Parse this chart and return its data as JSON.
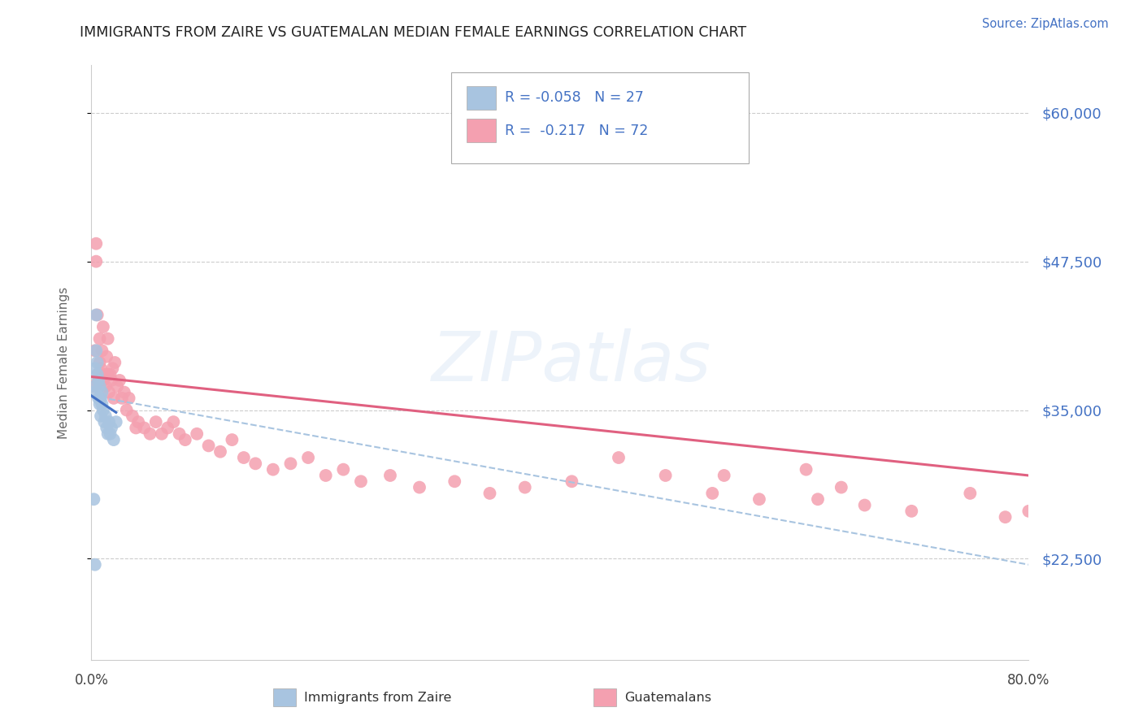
{
  "title": "IMMIGRANTS FROM ZAIRE VS GUATEMALAN MEDIAN FEMALE EARNINGS CORRELATION CHART",
  "source": "Source: ZipAtlas.com",
  "ylabel": "Median Female Earnings",
  "ytick_labels": [
    "$60,000",
    "$47,500",
    "$35,000",
    "$22,500"
  ],
  "ytick_values": [
    60000,
    47500,
    35000,
    22500
  ],
  "ymin": 14000,
  "ymax": 64000,
  "xmin": 0.0,
  "xmax": 0.8,
  "title_color": "#222222",
  "source_color": "#4472c4",
  "ylabel_color": "#666666",
  "ytick_color": "#4472c4",
  "blue_scatter_color": "#a8c4e0",
  "pink_scatter_color": "#f4a0b0",
  "blue_line_color": "#4472c4",
  "pink_line_color": "#e06080",
  "dashed_line_color": "#a8c4e0",
  "grid_color": "#cccccc",
  "legend_text_color": "#4472c4",
  "legend_label1": "Immigrants from Zaire",
  "legend_label2": "Guatemalans",
  "zaire_x": [
    0.002,
    0.003,
    0.003,
    0.004,
    0.004,
    0.005,
    0.005,
    0.006,
    0.006,
    0.007,
    0.007,
    0.008,
    0.008,
    0.009,
    0.009,
    0.01,
    0.011,
    0.012,
    0.013,
    0.014,
    0.015,
    0.016,
    0.017,
    0.019,
    0.021,
    0.002,
    0.003
  ],
  "zaire_y": [
    36500,
    38500,
    37000,
    43000,
    40000,
    39000,
    38000,
    37500,
    36000,
    37000,
    35500,
    36000,
    34500,
    36500,
    35500,
    35000,
    34000,
    34500,
    33500,
    33000,
    34000,
    33000,
    33500,
    32500,
    34000,
    27500,
    22000
  ],
  "guatemalan_x": [
    0.002,
    0.003,
    0.004,
    0.004,
    0.005,
    0.006,
    0.006,
    0.007,
    0.007,
    0.008,
    0.009,
    0.01,
    0.01,
    0.011,
    0.012,
    0.013,
    0.014,
    0.014,
    0.015,
    0.016,
    0.017,
    0.018,
    0.019,
    0.02,
    0.022,
    0.024,
    0.026,
    0.028,
    0.03,
    0.032,
    0.035,
    0.038,
    0.04,
    0.045,
    0.05,
    0.055,
    0.06,
    0.065,
    0.07,
    0.075,
    0.08,
    0.09,
    0.1,
    0.11,
    0.12,
    0.13,
    0.14,
    0.155,
    0.17,
    0.185,
    0.2,
    0.215,
    0.23,
    0.255,
    0.28,
    0.31,
    0.34,
    0.37,
    0.41,
    0.45,
    0.49,
    0.53,
    0.57,
    0.61,
    0.64,
    0.54,
    0.62,
    0.66,
    0.7,
    0.75,
    0.78,
    0.8
  ],
  "guatemalan_y": [
    37000,
    40000,
    49000,
    47500,
    43000,
    38000,
    37500,
    41000,
    39000,
    38500,
    40000,
    37500,
    42000,
    38000,
    37000,
    39500,
    41000,
    38000,
    36500,
    38000,
    37500,
    38500,
    36000,
    39000,
    37000,
    37500,
    36000,
    36500,
    35000,
    36000,
    34500,
    33500,
    34000,
    33500,
    33000,
    34000,
    33000,
    33500,
    34000,
    33000,
    32500,
    33000,
    32000,
    31500,
    32500,
    31000,
    30500,
    30000,
    30500,
    31000,
    29500,
    30000,
    29000,
    29500,
    28500,
    29000,
    28000,
    28500,
    29000,
    31000,
    29500,
    28000,
    27500,
    30000,
    28500,
    29500,
    27500,
    27000,
    26500,
    28000,
    26000,
    26500
  ],
  "blue_line_x": [
    0.0,
    0.021
  ],
  "blue_line_y": [
    36200,
    34800
  ],
  "pink_line_x": [
    0.0,
    0.8
  ],
  "pink_line_y": [
    37800,
    29500
  ],
  "dashed_line_x": [
    0.0,
    0.8
  ],
  "dashed_line_y": [
    36200,
    22000
  ]
}
